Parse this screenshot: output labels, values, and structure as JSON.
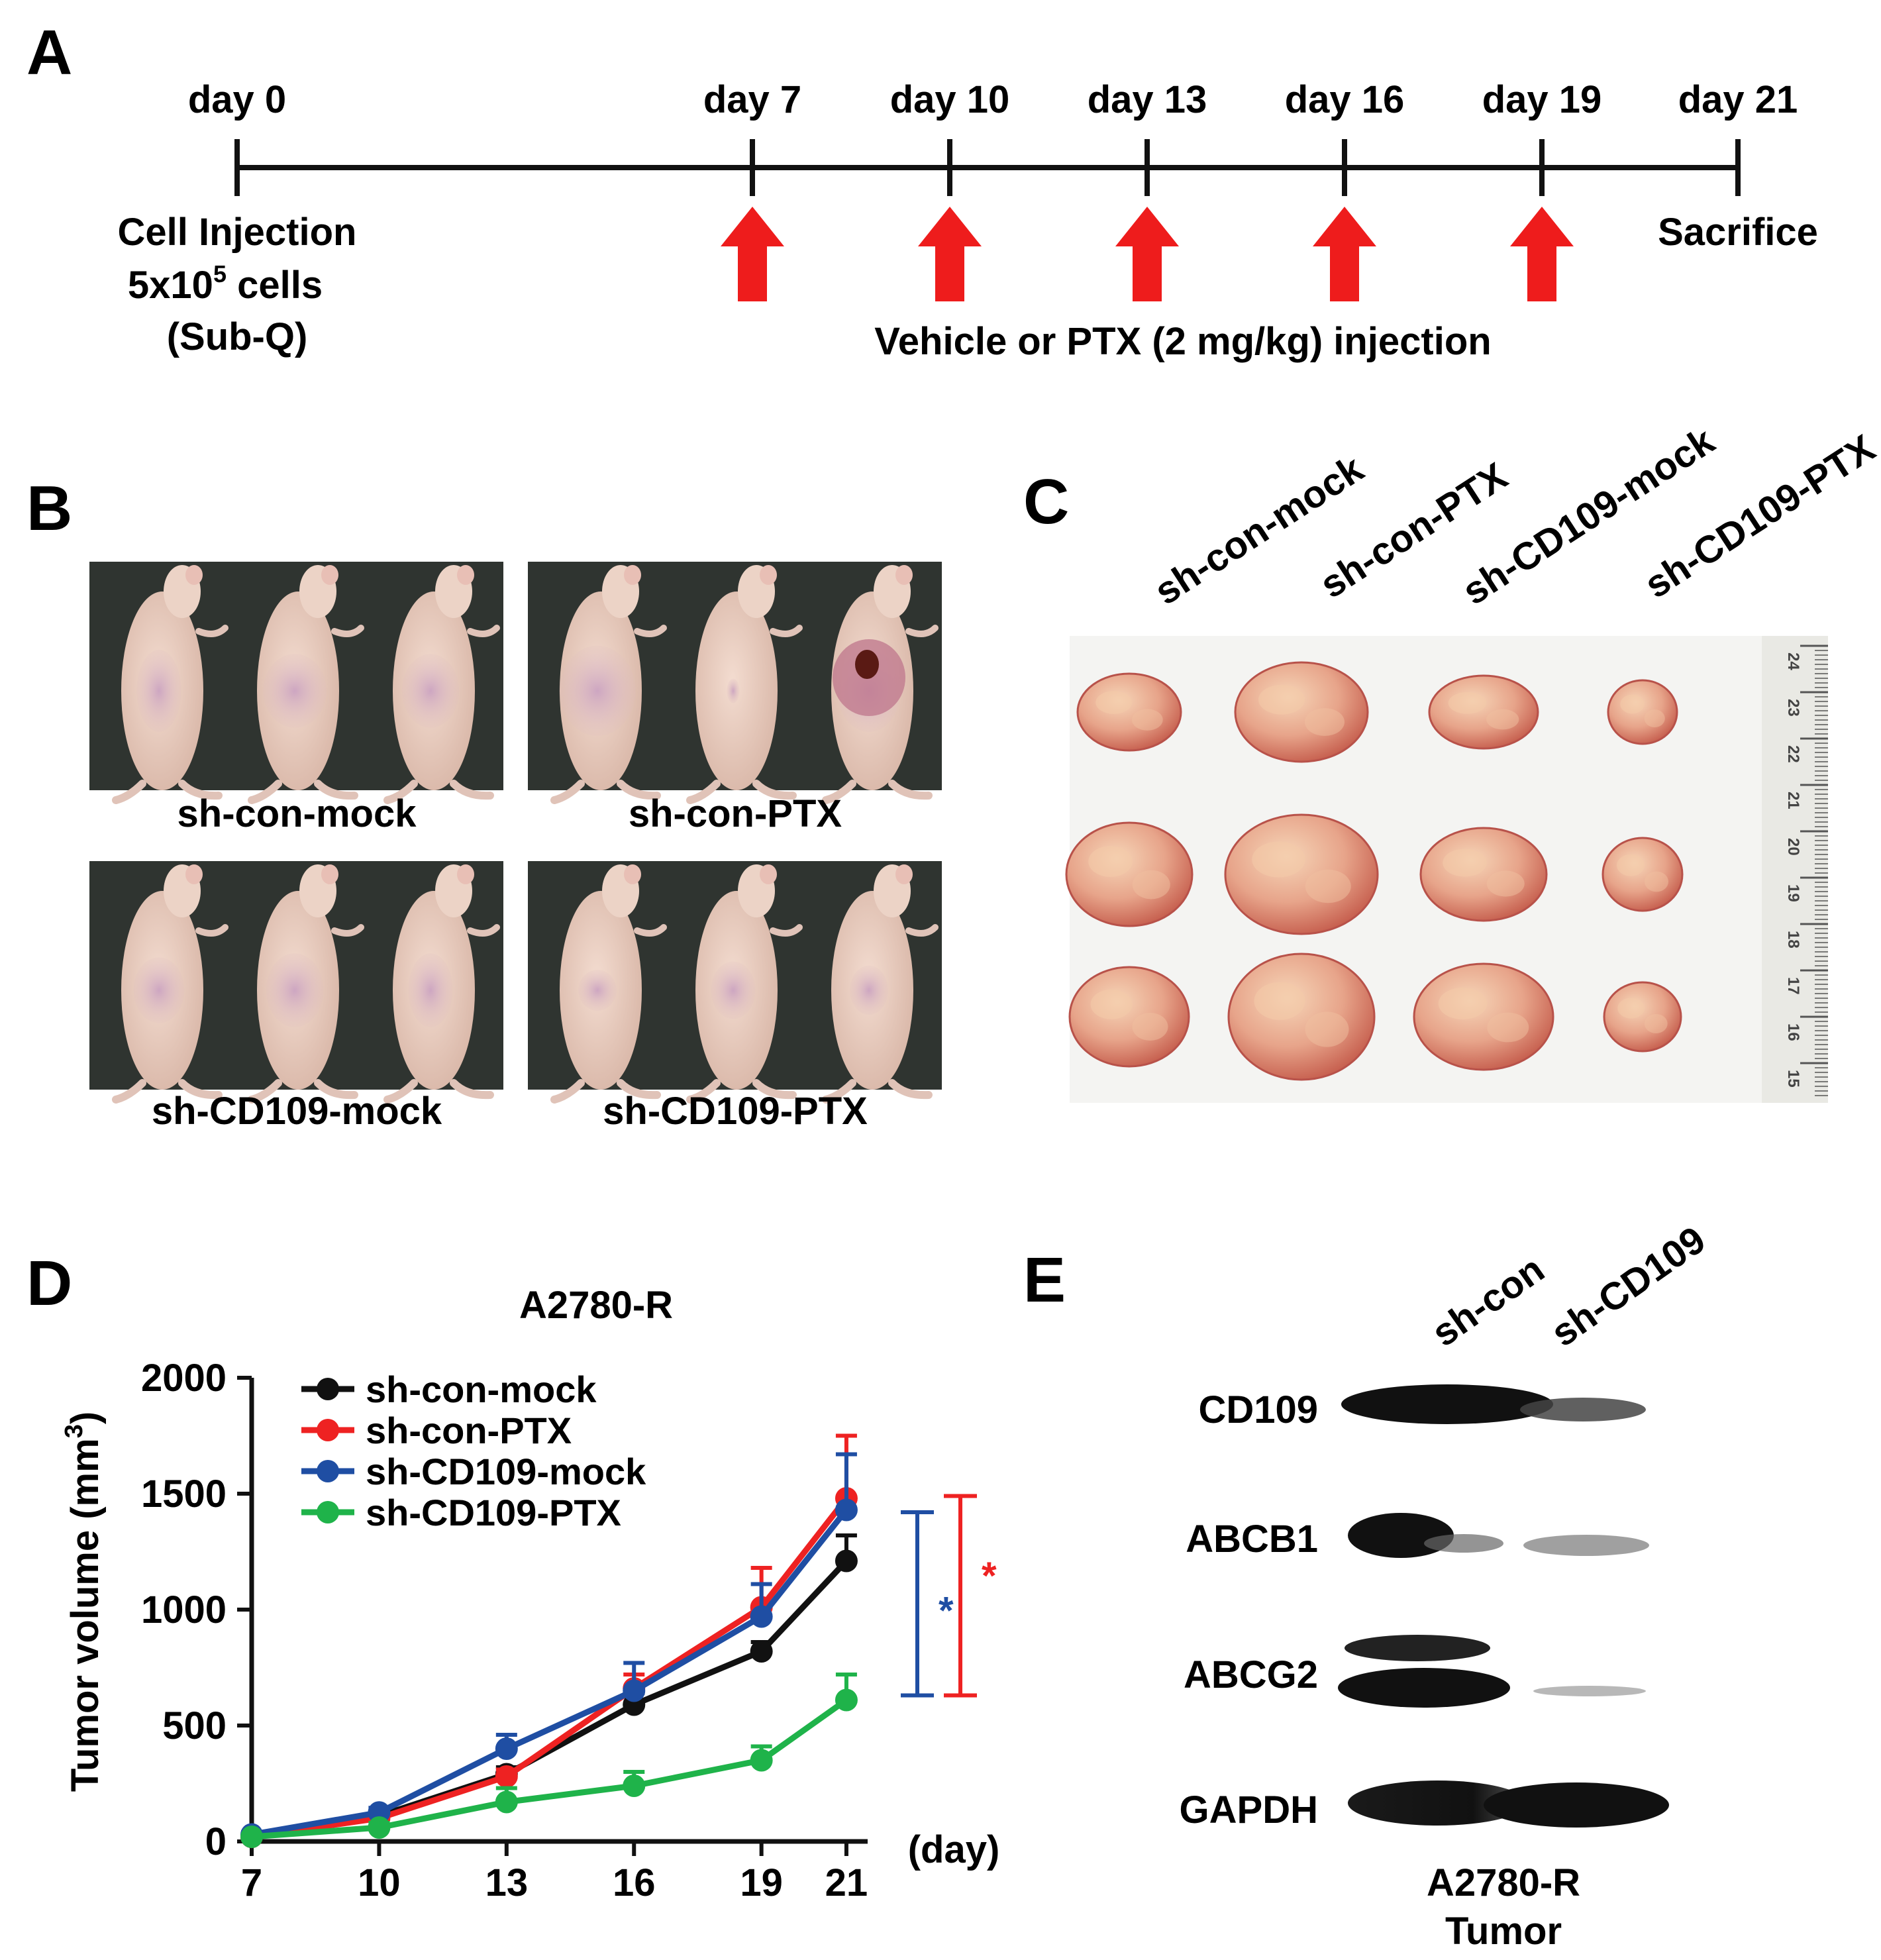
{
  "panels": {
    "A": "A",
    "B": "B",
    "C": "C",
    "D": "D",
    "E": "E"
  },
  "timeline": {
    "days": [
      "day 0",
      "day 7",
      "day 10",
      "day 13",
      "day 16",
      "day 19",
      "day 21"
    ],
    "start_label": [
      "Cell Injection",
      "5x10",
      "5",
      " cells",
      "(Sub-Q)"
    ],
    "end_label": "Sacrifice",
    "injection_label": "Vehicle or PTX (2 mg/kg) injection",
    "arrow_color": "#ee1c1c"
  },
  "mice_photos": {
    "groups": [
      "sh-con-mock",
      "sh-con-PTX",
      "sh-CD109-mock",
      "sh-CD109-PTX"
    ]
  },
  "tumor_photo": {
    "groups": [
      "sh-con-mock",
      "sh-con-PTX",
      "sh-CD109-mock",
      "sh-CD109-PTX"
    ],
    "ruler_marks": [
      "24",
      "23",
      "22",
      "21",
      "20",
      "19",
      "18",
      "17",
      "16",
      "15"
    ]
  },
  "chart_data": {
    "type": "line",
    "title": "A2780-R",
    "ylabel": "Tumor volume (mm",
    "ylabel_sup": "3",
    "ylabel_end": ")",
    "xlabel": "(day)",
    "x": [
      7,
      10,
      13,
      16,
      19,
      21
    ],
    "ylim": [
      0,
      2000
    ],
    "yticks": [
      0,
      500,
      1000,
      1500,
      2000
    ],
    "series": [
      {
        "name": "sh-con-mock",
        "color": "#111111",
        "values": [
          20,
          110,
          290,
          590,
          820,
          1210
        ],
        "errors": [
          10,
          20,
          30,
          50,
          40,
          110
        ]
      },
      {
        "name": "sh-con-PTX",
        "color": "#ee2222",
        "values": [
          20,
          100,
          280,
          660,
          1010,
          1480
        ],
        "errors": [
          10,
          20,
          30,
          60,
          170,
          270
        ]
      },
      {
        "name": "sh-CD109-mock",
        "color": "#1f4ea3",
        "values": [
          30,
          125,
          400,
          650,
          970,
          1430
        ],
        "errors": [
          10,
          20,
          60,
          120,
          140,
          240
        ]
      },
      {
        "name": "sh-CD109-PTX",
        "color": "#1fb34a",
        "values": [
          20,
          60,
          170,
          240,
          350,
          610
        ],
        "errors": [
          10,
          20,
          60,
          60,
          60,
          110
        ]
      }
    ],
    "significance": [
      {
        "symbol": "*",
        "color": "#1f4ea3",
        "range": [
          630,
          1420
        ]
      },
      {
        "symbol": "*",
        "color": "#ee2222",
        "range": [
          630,
          1490
        ]
      }
    ],
    "legend_position": "top-left"
  },
  "western_blot": {
    "lanes": [
      "sh-con",
      "sh-CD109"
    ],
    "rows": [
      "CD109",
      "ABCB1",
      "ABCG2",
      "GAPDH"
    ],
    "caption": [
      "A2780-R",
      "Tumor"
    ]
  }
}
